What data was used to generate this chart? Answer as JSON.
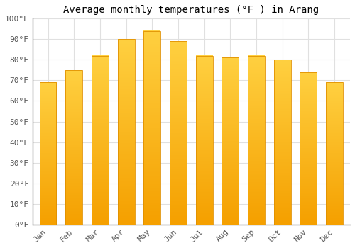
{
  "title": "Average monthly temperatures (°F ) in Arang",
  "months": [
    "Jan",
    "Feb",
    "Mar",
    "Apr",
    "May",
    "Jun",
    "Jul",
    "Aug",
    "Sep",
    "Oct",
    "Nov",
    "Dec"
  ],
  "values": [
    69,
    75,
    82,
    90,
    94,
    89,
    82,
    81,
    82,
    80,
    74,
    69
  ],
  "bar_color_top": "#FFD040",
  "bar_color_bottom": "#F5A000",
  "bar_edge_color": "#E09000",
  "ylim": [
    0,
    100
  ],
  "yticks": [
    0,
    10,
    20,
    30,
    40,
    50,
    60,
    70,
    80,
    90,
    100
  ],
  "ytick_labels": [
    "0°F",
    "10°F",
    "20°F",
    "30°F",
    "40°F",
    "50°F",
    "60°F",
    "70°F",
    "80°F",
    "90°F",
    "100°F"
  ],
  "bg_color": "#FFFFFF",
  "grid_color": "#E0E0E0",
  "title_fontsize": 10,
  "tick_fontsize": 8,
  "bar_width": 0.65,
  "n_gradient": 100
}
